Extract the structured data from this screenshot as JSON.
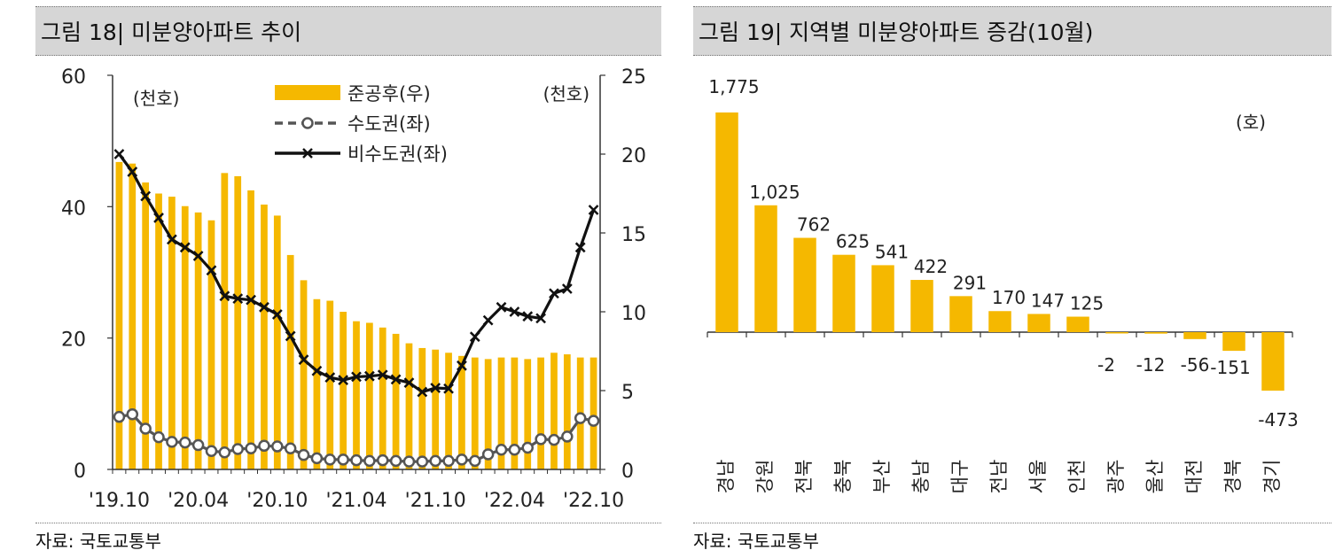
{
  "left": {
    "title": "그림 18| 미분양아파트 추이",
    "source": "자료: 국토교통부",
    "chart_data": {
      "type": "bar+line",
      "categories": [
        "'19.10",
        "'19.11",
        "'19.12",
        "'20.01",
        "'20.02",
        "'20.03",
        "'20.04",
        "'20.05",
        "'20.06",
        "'20.07",
        "'20.08",
        "'20.09",
        "'20.10",
        "'20.11",
        "'20.12",
        "'21.01",
        "'21.02",
        "'21.03",
        "'21.04",
        "'21.05",
        "'21.06",
        "'21.07",
        "'21.08",
        "'21.09",
        "'21.10",
        "'21.11",
        "'21.12",
        "'22.01",
        "'22.02",
        "'22.03",
        "'22.04",
        "'22.05",
        "'22.06",
        "'22.07",
        "'22.08",
        "'22.09",
        "'22.10"
      ],
      "x_tick_labels": [
        "'19.10",
        "'20.04",
        "'20.10",
        "'21.04",
        "'21.10",
        "'22.04",
        "'22.10"
      ],
      "x_tick_every": 6,
      "left_axis": {
        "label": "(천호)",
        "ylim": [
          0,
          60
        ],
        "ticks": [
          "0",
          "20",
          "40",
          "60"
        ]
      },
      "right_axis": {
        "label": "(천호)",
        "ylim": [
          0,
          25
        ],
        "ticks": [
          "0",
          "5",
          "10",
          "15",
          "20",
          "25"
        ]
      },
      "legend": {
        "placement": "top-center",
        "items": [
          "준공후(우)",
          "수도권(좌)",
          "비수도권(좌)"
        ]
      },
      "series": [
        {
          "name": "준공후(우)",
          "type": "bar",
          "axis": "right",
          "color": "#F5B800",
          "values": [
            19.5,
            19.4,
            18.2,
            17.5,
            17.3,
            16.7,
            16.3,
            15.8,
            18.8,
            18.6,
            17.7,
            16.8,
            16.1,
            13.6,
            12.0,
            10.8,
            10.7,
            10.0,
            9.4,
            9.3,
            9.0,
            8.6,
            8.0,
            7.7,
            7.6,
            7.4,
            7.2,
            7.1,
            7.0,
            7.1,
            7.1,
            7.0,
            7.1,
            7.4,
            7.3,
            7.1,
            7.1
          ]
        },
        {
          "name": "수도권(좌)",
          "type": "line",
          "axis": "left",
          "color": "#555555",
          "marker": "circle",
          "dash": true,
          "values": [
            8.0,
            8.4,
            6.2,
            4.9,
            4.2,
            4.1,
            3.7,
            2.8,
            2.6,
            3.1,
            3.2,
            3.6,
            3.5,
            3.2,
            2.2,
            1.7,
            1.5,
            1.5,
            1.4,
            1.3,
            1.4,
            1.3,
            1.2,
            1.2,
            1.3,
            1.3,
            1.5,
            1.3,
            2.3,
            3.0,
            3.0,
            3.3,
            4.6,
            4.5,
            5.0,
            7.8,
            7.4
          ]
        },
        {
          "name": "비수도권(좌)",
          "type": "line",
          "axis": "left",
          "color": "#111111",
          "marker": "cross",
          "dash": false,
          "values": [
            48.0,
            45.3,
            41.6,
            38.3,
            35.0,
            33.8,
            32.5,
            30.3,
            26.4,
            26.0,
            25.8,
            24.7,
            23.6,
            20.3,
            16.7,
            15.0,
            14.0,
            13.6,
            14.1,
            14.2,
            14.4,
            13.7,
            13.2,
            11.8,
            12.4,
            12.3,
            15.8,
            20.2,
            22.7,
            24.7,
            24.0,
            23.3,
            23.0,
            26.8,
            27.5,
            33.8,
            39.5
          ]
        }
      ]
    }
  },
  "right": {
    "title": "그림 19| 지역별 미분양아파트 증감(10월)",
    "source": "자료: 국토교통부",
    "chart_data": {
      "type": "bar",
      "unit_label": "(호)",
      "color": "#F5B800",
      "ylim": [
        -600,
        1800
      ],
      "categories": [
        "경남",
        "강원",
        "전북",
        "충북",
        "부산",
        "충남",
        "대구",
        "전남",
        "서울",
        "인천",
        "광주",
        "울산",
        "대전",
        "경북",
        "경기"
      ],
      "values": [
        1775,
        1025,
        762,
        625,
        541,
        422,
        291,
        170,
        147,
        125,
        -2,
        -12,
        -56,
        -151,
        -473
      ],
      "value_labels": [
        "1,775",
        "1,025",
        "762",
        "625",
        "541",
        "422",
        "291",
        "170",
        "147",
        "125",
        "-2",
        "-12",
        "-56",
        "-151",
        "-473"
      ]
    }
  }
}
